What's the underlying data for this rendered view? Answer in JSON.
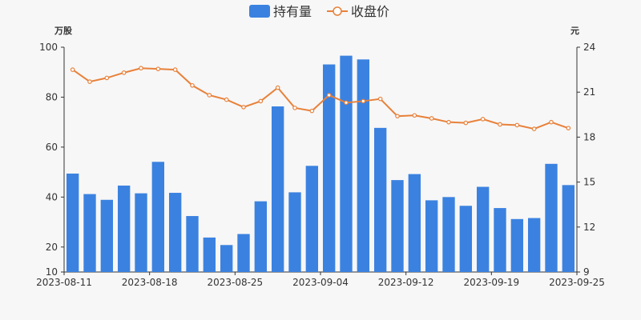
{
  "legend": {
    "bar_label": "持有量",
    "line_label": "收盘价"
  },
  "axes": {
    "left_unit": "万股",
    "right_unit": "元"
  },
  "colors": {
    "bar": "#3b82e0",
    "line": "#e8813a",
    "point_fill": "#ffffff",
    "axis": "#333333",
    "background": "#f7f7f7"
  },
  "chart_data": {
    "type": "bar",
    "x_tick_labels": [
      "2023-08-11",
      "2023-08-18",
      "2023-08-25",
      "2023-09-04",
      "2023-09-12",
      "2023-09-19",
      "2023-09-25"
    ],
    "y_left_ticks": [
      10,
      20,
      40,
      60,
      80,
      100
    ],
    "y_right_ticks": [
      9,
      12,
      15,
      18,
      21,
      24
    ],
    "y_left_range": [
      10,
      100
    ],
    "y_right_range": [
      9,
      24
    ],
    "grid": false,
    "legend_position": "top-center",
    "series": [
      {
        "name": "持有量",
        "type": "bar",
        "axis": "left",
        "values": [
          49.4,
          41.2,
          38.9,
          44.6,
          41.5,
          54.1,
          41.7,
          32.4,
          23.8,
          20.8,
          25.2,
          38.3,
          76.3,
          41.9,
          52.5,
          93.1,
          96.6,
          95.1,
          67.7,
          46.8,
          49.2,
          38.7,
          40.0,
          36.5,
          44.1,
          35.6,
          31.2,
          31.6,
          53.3,
          44.8
        ]
      },
      {
        "name": "收盘价",
        "type": "line",
        "axis": "right",
        "values": [
          22.5,
          21.7,
          21.95,
          22.3,
          22.6,
          22.55,
          22.5,
          21.45,
          20.8,
          20.5,
          20.0,
          20.4,
          21.3,
          19.95,
          19.75,
          20.8,
          20.3,
          20.4,
          20.55,
          19.4,
          19.45,
          19.25,
          19.0,
          18.95,
          19.2,
          18.85,
          18.8,
          18.55,
          19.0,
          18.6
        ]
      }
    ]
  }
}
